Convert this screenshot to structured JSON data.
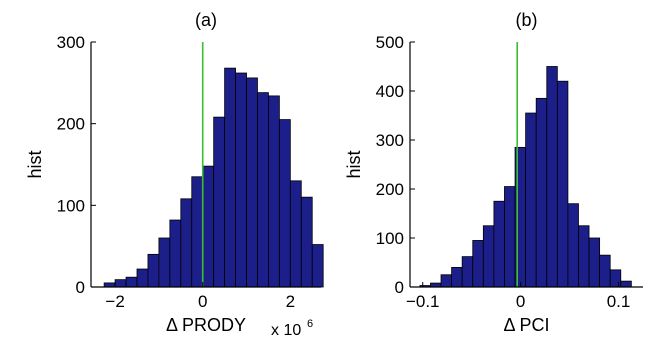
{
  "chart_data": [
    {
      "type": "bar",
      "title": "(a)",
      "xlabel": "Δ PRODY",
      "ylabel": "hist",
      "x_multiplier_label": "x 10",
      "x_multiplier_exponent": "6",
      "xlim": [
        -2.55,
        2.7
      ],
      "ylim": [
        0,
        300
      ],
      "xticks": [
        -2,
        0,
        2
      ],
      "xtick_labels": [
        "−2",
        "0",
        "2"
      ],
      "yticks": [
        0,
        100,
        200,
        300
      ],
      "ytick_labels": [
        "0",
        "100",
        "200",
        "300"
      ],
      "bin_width": 0.25,
      "bin_centers": [
        -2.125,
        -1.875,
        -1.625,
        -1.375,
        -1.125,
        -0.875,
        -0.625,
        -0.375,
        -0.125,
        0.125,
        0.375,
        0.625,
        0.875,
        1.125,
        1.375,
        1.625,
        1.875,
        2.125,
        2.375,
        2.625
      ],
      "values": [
        5,
        9,
        12,
        22,
        40,
        60,
        82,
        108,
        135,
        148,
        208,
        268,
        262,
        256,
        238,
        234,
        205,
        130,
        110,
        52
      ],
      "reference_line_x": 0,
      "grid": false
    },
    {
      "type": "bar",
      "title": "(b)",
      "xlabel": "Δ PCI",
      "ylabel": "hist",
      "xlim": [
        -0.113,
        0.125
      ],
      "ylim": [
        0,
        500
      ],
      "xticks": [
        -0.1,
        0,
        0.1
      ],
      "xtick_labels": [
        "−0.1",
        "0",
        "0.1"
      ],
      "yticks": [
        0,
        100,
        200,
        300,
        400,
        500
      ],
      "ytick_labels": [
        "0",
        "100",
        "200",
        "300",
        "400",
        "500"
      ],
      "bin_width": 0.0108,
      "bin_centers": [
        -0.0975,
        -0.0867,
        -0.0759,
        -0.0651,
        -0.0543,
        -0.0435,
        -0.0327,
        -0.0219,
        -0.0111,
        -0.0003,
        0.0105,
        0.0213,
        0.0321,
        0.0429,
        0.0537,
        0.0645,
        0.0753,
        0.0861,
        0.0969,
        0.1077
      ],
      "values": [
        3,
        8,
        25,
        40,
        62,
        95,
        125,
        175,
        205,
        285,
        355,
        385,
        450,
        420,
        170,
        125,
        100,
        65,
        35,
        12
      ],
      "reference_line_x": -0.0035,
      "grid": false
    }
  ]
}
